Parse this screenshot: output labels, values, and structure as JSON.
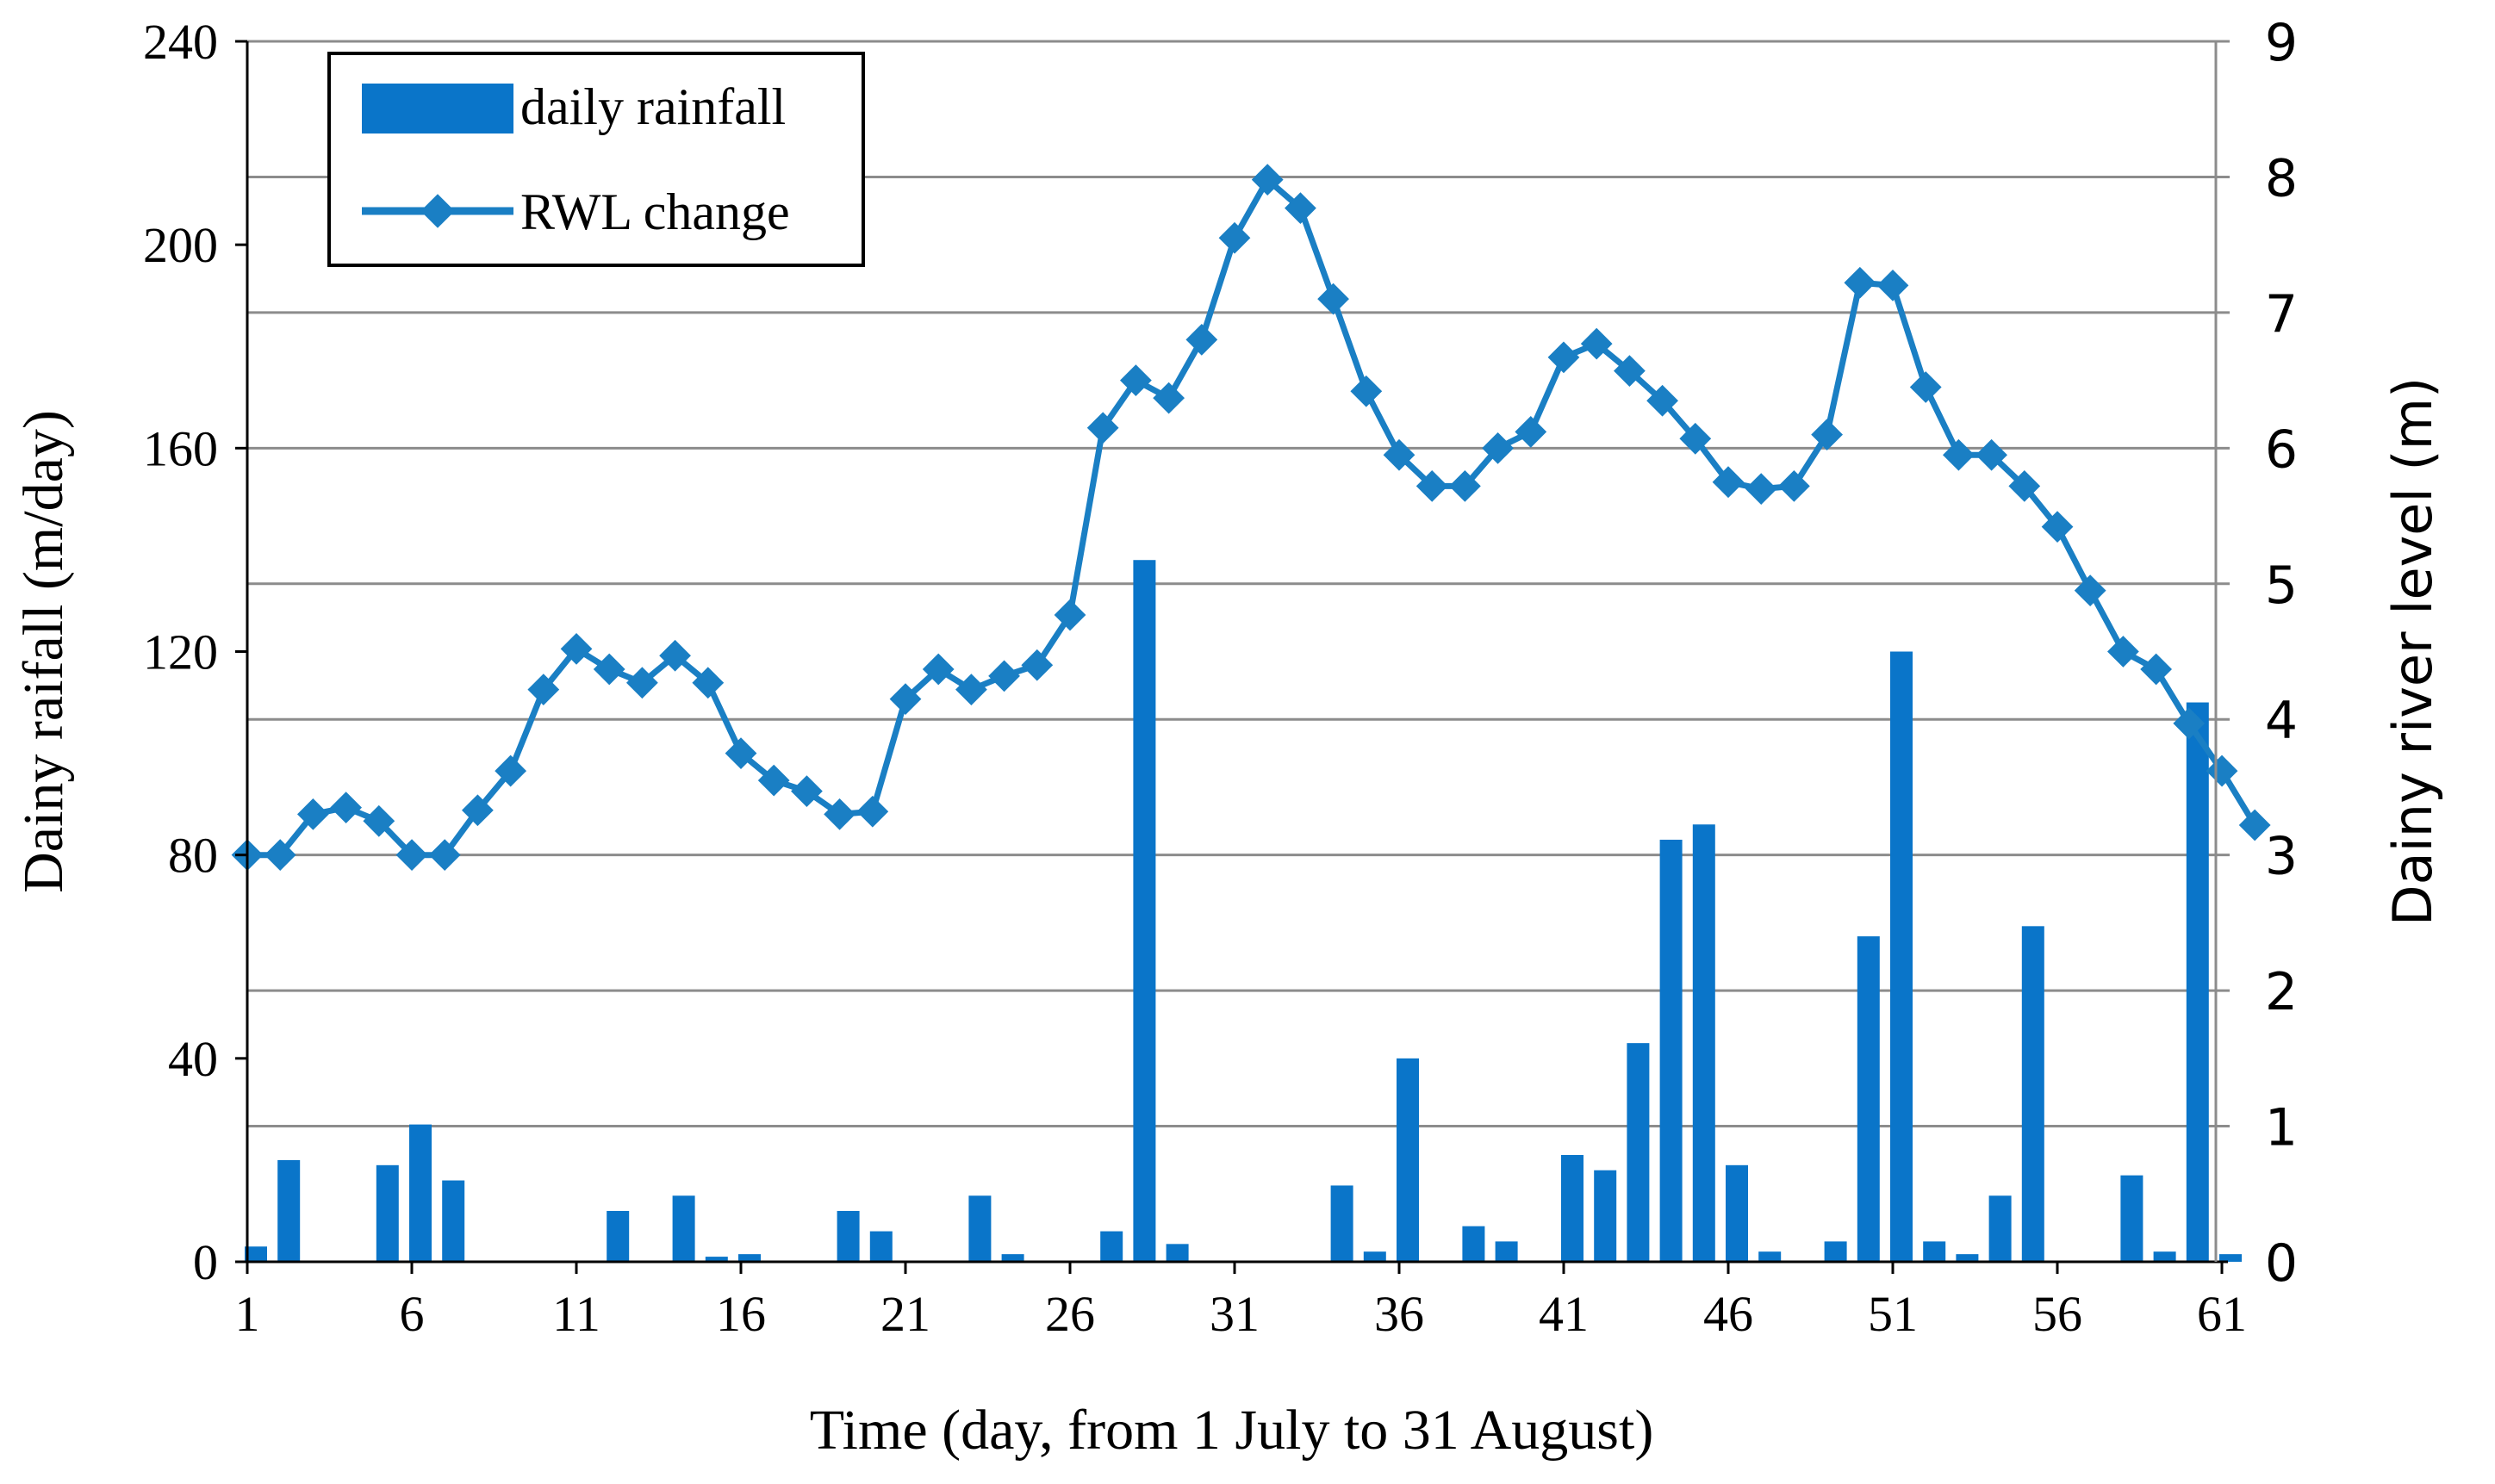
{
  "chart_data": {
    "type": "bar+line",
    "title": "",
    "xlabel": "Time (day, from 1 July to 31 August)",
    "ylabel_left": "Dainy raifall (m/day)",
    "ylabel_right": "Dainy river level (m)",
    "x_ticks": [
      "1",
      "6",
      "11",
      "16",
      "21",
      "26",
      "31",
      "36",
      "41",
      "46",
      "51",
      "56",
      "61"
    ],
    "y_left_ticks": [
      "0",
      "40",
      "80",
      "120",
      "160",
      "200",
      "240"
    ],
    "y_right_ticks": [
      "0",
      "1",
      "2",
      "3",
      "4",
      "5",
      "6",
      "7",
      "8",
      "9"
    ],
    "x_range": [
      1,
      62
    ],
    "ylim_left": [
      0,
      240
    ],
    "ylim_right": [
      0,
      9
    ],
    "grid": "horizontal, right axis",
    "legend": {
      "position": "top-left",
      "bar_label": "daily rainfall",
      "line_label": "RWL change"
    },
    "colors": {
      "bar": "#0a75c9",
      "line": "#1a7fc4",
      "marker": "#1a7fc4",
      "grid": "#8c8c8c",
      "axis": "#000000"
    },
    "series": [
      {
        "name": "daily rainfall",
        "axis": "left",
        "type": "bar",
        "x": [
          1,
          2,
          3,
          4,
          5,
          6,
          7,
          8,
          9,
          10,
          11,
          12,
          13,
          14,
          15,
          16,
          17,
          18,
          19,
          20,
          21,
          22,
          23,
          24,
          25,
          26,
          27,
          28,
          29,
          30,
          31,
          32,
          33,
          34,
          35,
          36,
          37,
          38,
          39,
          40,
          41,
          42,
          43,
          44,
          45,
          46,
          47,
          48,
          49,
          50,
          51,
          52,
          53,
          54,
          55,
          56,
          57,
          58,
          59,
          60,
          61,
          62
        ],
        "values": [
          3,
          20,
          0,
          0,
          19,
          27,
          16,
          0,
          0,
          0,
          0,
          10,
          0,
          13,
          1,
          1.5,
          0,
          0,
          10,
          6,
          0,
          0,
          13,
          1.5,
          0,
          0,
          6,
          138,
          3.5,
          0,
          0,
          0,
          0,
          15,
          2,
          40,
          0,
          7,
          4,
          0,
          21,
          18,
          43,
          83,
          86,
          19,
          2,
          0,
          4,
          64,
          120,
          4,
          1.5,
          13,
          66,
          0,
          0,
          17,
          2,
          110,
          1.5,
          0
        ]
      },
      {
        "name": "RWL change",
        "axis": "right",
        "type": "line",
        "x": [
          1,
          2,
          3,
          4,
          5,
          6,
          7,
          8,
          9,
          10,
          11,
          12,
          13,
          14,
          15,
          16,
          17,
          18,
          19,
          20,
          21,
          22,
          23,
          24,
          25,
          26,
          27,
          28,
          29,
          30,
          31,
          32,
          33,
          34,
          35,
          36,
          37,
          38,
          39,
          40,
          41,
          42,
          43,
          44,
          45,
          46,
          47,
          48,
          49,
          50,
          51,
          52,
          53,
          54,
          55,
          56,
          57,
          58,
          59,
          60,
          61,
          62
        ],
        "values": [
          3.0,
          3.0,
          3.3,
          3.35,
          3.25,
          3.0,
          3.0,
          3.33,
          3.62,
          4.22,
          4.52,
          4.37,
          4.27,
          4.47,
          4.27,
          3.75,
          3.55,
          3.47,
          3.3,
          3.32,
          4.15,
          4.37,
          4.22,
          4.32,
          4.4,
          4.77,
          6.15,
          6.5,
          6.37,
          6.8,
          7.55,
          7.98,
          7.77,
          7.1,
          6.42,
          5.95,
          5.72,
          5.72,
          6.0,
          6.12,
          6.67,
          6.77,
          6.57,
          6.35,
          6.07,
          5.75,
          5.7,
          5.72,
          6.1,
          7.22,
          7.2,
          6.45,
          5.95,
          5.95,
          5.72,
          5.42,
          4.95,
          4.5,
          4.37,
          3.97,
          3.62,
          3.22
        ]
      }
    ]
  }
}
